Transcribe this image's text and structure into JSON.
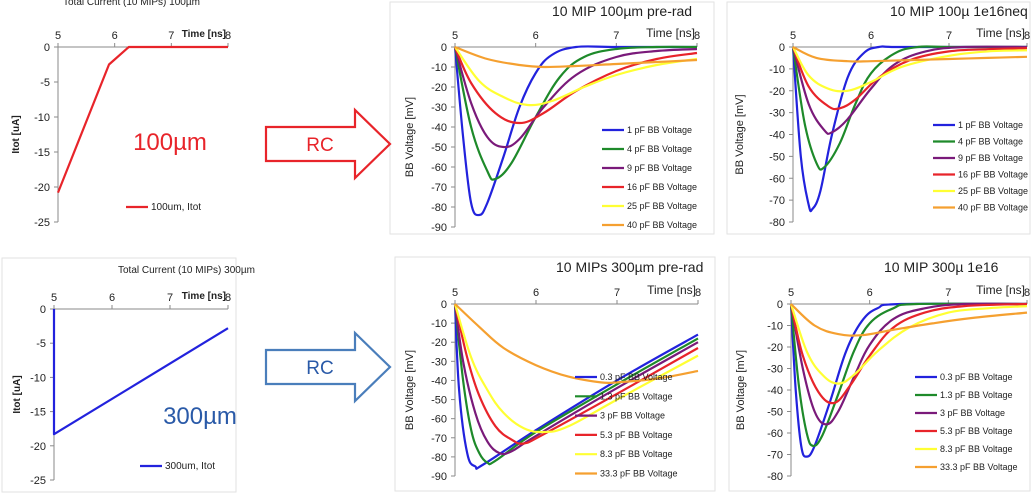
{
  "colors": {
    "red": "#e8242a",
    "blue": "#2222dd",
    "green": "#1e8a2a",
    "purple": "#7a1a7a",
    "yellow": "#ffff33",
    "orange": "#f5a030",
    "steel": "#4a7ebb",
    "axis": "#888888",
    "grid": "#d9d9d9"
  },
  "labels": {
    "thickness_100": "100µm",
    "thickness_300": "300µm",
    "arrow_top": "RC",
    "arrow_bottom": "RC"
  },
  "chart_data": [
    {
      "id": "c1",
      "type": "line",
      "title": "Total Current (10 MIPs) 100µm",
      "xlabel": "Time [ns]",
      "ylabel": "Itot [uA]",
      "xlim": [
        5,
        8
      ],
      "ylim": [
        -25,
        0
      ],
      "xticks": [
        "5",
        "6",
        "7",
        "8"
      ],
      "yticks": [
        "0",
        "-5",
        "-10",
        "-15",
        "-20",
        "-25"
      ],
      "grid": false,
      "legend": "bottom-right",
      "series": [
        {
          "name": "100um,  Itot",
          "color": "#e8242a",
          "x": [
            5.0,
            5.9,
            6.25,
            8.0
          ],
          "y": [
            -20.8,
            -2.5,
            0,
            0
          ]
        }
      ]
    },
    {
      "id": "c2",
      "type": "line",
      "title": "10 MIP 100µm pre-rad",
      "xlabel": "Time [ns]",
      "ylabel": "BB Voltage [mV]",
      "xlim": [
        5,
        8
      ],
      "ylim": [
        -90,
        0
      ],
      "xticks": [
        "5",
        "6",
        "7",
        "8"
      ],
      "yticks": [
        "0",
        "-10",
        "-20",
        "-30",
        "-40",
        "-50",
        "-60",
        "-70",
        "-80",
        "-90"
      ],
      "grid": false,
      "legend": "right",
      "series": [
        {
          "name": "1 pF BB Voltage",
          "color": "#2222dd",
          "x": [
            5.0,
            5.1,
            5.2,
            5.3,
            5.4,
            5.6,
            5.8,
            6.0,
            6.2,
            6.5,
            7.0,
            8.0
          ],
          "y": [
            0,
            -45,
            -78,
            -84,
            -78,
            -55,
            -30,
            -13,
            -4,
            0,
            0,
            0
          ]
        },
        {
          "name": "4 pF BB Voltage",
          "color": "#1e8a2a",
          "x": [
            5.0,
            5.2,
            5.4,
            5.5,
            5.7,
            6.0,
            6.3,
            6.6,
            7.0,
            7.5,
            8.0
          ],
          "y": [
            0,
            -40,
            -62,
            -66,
            -58,
            -35,
            -15,
            -5,
            -1,
            0,
            0
          ]
        },
        {
          "name": "9 pF BB Voltage",
          "color": "#7a1a7a",
          "x": [
            5.0,
            5.2,
            5.4,
            5.6,
            5.8,
            6.1,
            6.5,
            7.0,
            7.5,
            8.0
          ],
          "y": [
            0,
            -28,
            -45,
            -50,
            -46,
            -30,
            -14,
            -5,
            -2,
            -1
          ]
        },
        {
          "name": "16 pF BB Voltage",
          "color": "#e8242a",
          "x": [
            5.0,
            5.2,
            5.5,
            5.8,
            6.1,
            6.5,
            7.0,
            7.5,
            8.0
          ],
          "y": [
            0,
            -18,
            -33,
            -38,
            -33,
            -22,
            -12,
            -6,
            -3
          ]
        },
        {
          "name": "25 pF BB Voltage",
          "color": "#ffff33",
          "x": [
            5.0,
            5.3,
            5.6,
            5.9,
            6.2,
            6.6,
            7.0,
            7.5,
            8.0
          ],
          "y": [
            0,
            -17,
            -25,
            -29,
            -27,
            -20,
            -14,
            -9,
            -6
          ]
        },
        {
          "name": "40 pF BB Voltage",
          "color": "#f5a030",
          "x": [
            5.0,
            5.4,
            5.8,
            6.1,
            6.5,
            7.0,
            7.5,
            8.0
          ],
          "y": [
            0,
            -6,
            -9,
            -10,
            -9.5,
            -8.5,
            -7.5,
            -6.5
          ]
        }
      ]
    },
    {
      "id": "c3",
      "type": "line",
      "title": "10 MIP 100µ 1e16neq",
      "xlabel": "Time [ns]",
      "ylabel": "BB Voltage [mV]",
      "xlim": [
        5,
        8
      ],
      "ylim": [
        -80,
        0
      ],
      "xticks": [
        "5",
        "6",
        "7",
        "8"
      ],
      "yticks": [
        "0",
        "-10",
        "-20",
        "-30",
        "-40",
        "-50",
        "-60",
        "-70",
        "-80"
      ],
      "grid": false,
      "legend": "right",
      "series": [
        {
          "name": "1 pF BB Voltage",
          "color": "#2222dd",
          "x": [
            5.0,
            5.1,
            5.2,
            5.25,
            5.35,
            5.5,
            5.7,
            5.9,
            6.1,
            6.4,
            8.0
          ],
          "y": [
            0,
            -50,
            -72,
            -74,
            -66,
            -40,
            -14,
            -3,
            0,
            0,
            0
          ]
        },
        {
          "name": "4 pF BB Voltage",
          "color": "#1e8a2a",
          "x": [
            5.0,
            5.15,
            5.3,
            5.4,
            5.6,
            5.8,
            6.0,
            6.3,
            6.6,
            7.0,
            8.0
          ],
          "y": [
            0,
            -35,
            -53,
            -55,
            -44,
            -26,
            -12,
            -3,
            0,
            0,
            0
          ]
        },
        {
          "name": "9 pF BB Voltage",
          "color": "#7a1a7a",
          "x": [
            5.0,
            5.2,
            5.4,
            5.5,
            5.7,
            6.0,
            6.3,
            6.7,
            7.2,
            8.0
          ],
          "y": [
            0,
            -26,
            -38,
            -39,
            -33,
            -19,
            -8,
            -2,
            0,
            0
          ]
        },
        {
          "name": "16 pF BB Voltage",
          "color": "#e8242a",
          "x": [
            5.0,
            5.2,
            5.45,
            5.6,
            5.8,
            6.1,
            6.5,
            7.0,
            7.5,
            8.0
          ],
          "y": [
            0,
            -18,
            -27,
            -28,
            -24,
            -14,
            -6,
            -2,
            -1,
            -0.5
          ]
        },
        {
          "name": "25 pF BB Voltage",
          "color": "#ffff33",
          "x": [
            5.0,
            5.2,
            5.45,
            5.7,
            6.0,
            6.4,
            7.0,
            7.5,
            8.0
          ],
          "y": [
            0,
            -13,
            -19,
            -20,
            -16,
            -9,
            -4,
            -2,
            -1.5
          ]
        },
        {
          "name": "40 pF BB Voltage",
          "color": "#f5a030",
          "x": [
            5.0,
            5.3,
            5.7,
            6.0,
            6.5,
            7.0,
            7.5,
            8.0
          ],
          "y": [
            0,
            -5,
            -6.5,
            -6.5,
            -6,
            -5.5,
            -5,
            -4.5
          ]
        }
      ]
    },
    {
      "id": "c4",
      "type": "line",
      "title": "Total Current (10 MIPs) 300µm",
      "xlabel": "Time [ns]",
      "ylabel": "Itot [uA]",
      "xlim": [
        5,
        8
      ],
      "ylim": [
        -25,
        0
      ],
      "xticks": [
        "5",
        "6",
        "7",
        "8"
      ],
      "yticks": [
        "0",
        "-5",
        "-10",
        "-15",
        "-20",
        "-25"
      ],
      "grid": false,
      "legend": "bottom-right",
      "series": [
        {
          "name": "300um,  Itot",
          "color": "#2222dd",
          "x": [
            5.0,
            5.0,
            8.0
          ],
          "y": [
            0,
            -18.3,
            -2.8
          ]
        }
      ]
    },
    {
      "id": "c5",
      "type": "line",
      "title": "10 MIPs 300µm pre-rad",
      "xlabel": "Time [ns]",
      "ylabel": "BB Voltage [mV]",
      "xlim": [
        5,
        8
      ],
      "ylim": [
        -90,
        0
      ],
      "xticks": [
        "5",
        "6",
        "7",
        "8"
      ],
      "yticks": [
        "0",
        "-10",
        "-20",
        "-30",
        "-40",
        "-50",
        "-60",
        "-70",
        "-80",
        "-90"
      ],
      "grid": false,
      "legend": "right",
      "series": [
        {
          "name": "0.3 pF BB Voltage",
          "color": "#2222dd",
          "x": [
            5.0,
            5.05,
            5.15,
            5.25,
            5.35,
            6.0,
            7.0,
            8.0
          ],
          "y": [
            0,
            -45,
            -78,
            -85,
            -84,
            -66,
            -40,
            -16
          ]
        },
        {
          "name": "1.3 pF BB Voltage",
          "color": "#1e8a2a",
          "x": [
            5.0,
            5.1,
            5.2,
            5.3,
            5.4,
            5.5,
            6.0,
            7.0,
            8.0
          ],
          "y": [
            0,
            -40,
            -66,
            -78,
            -83,
            -82,
            -67,
            -42,
            -18
          ]
        },
        {
          "name": "3 pF BB Voltage",
          "color": "#7a1a7a",
          "x": [
            5.0,
            5.1,
            5.25,
            5.4,
            5.55,
            5.7,
            6.0,
            7.0,
            8.0
          ],
          "y": [
            0,
            -30,
            -57,
            -72,
            -78,
            -77,
            -69,
            -44,
            -20
          ]
        },
        {
          "name": "5.3 pF BB Voltage",
          "color": "#e8242a",
          "x": [
            5.0,
            5.15,
            5.3,
            5.5,
            5.7,
            5.85,
            6.1,
            7.0,
            8.0
          ],
          "y": [
            0,
            -28,
            -48,
            -64,
            -71,
            -73,
            -68,
            -47,
            -23
          ]
        },
        {
          "name": "8.3 pF BB Voltage",
          "color": "#ffff33",
          "x": [
            5.0,
            5.2,
            5.4,
            5.6,
            5.85,
            6.1,
            6.4,
            7.0,
            8.0
          ],
          "y": [
            0,
            -28,
            -45,
            -57,
            -65,
            -67,
            -64,
            -50,
            -27
          ]
        },
        {
          "name": "33.3 pF BB Voltage",
          "color": "#f5a030",
          "x": [
            5.0,
            5.3,
            5.6,
            6.0,
            6.4,
            6.8,
            7.0,
            7.5,
            8.0
          ],
          "y": [
            0,
            -12,
            -23,
            -32,
            -38,
            -41,
            -41,
            -39,
            -35
          ]
        }
      ]
    },
    {
      "id": "c6",
      "type": "line",
      "title": "10 MIP 300µ 1e16",
      "xlabel": "Time [ns]",
      "ylabel": "BB Voltage [mV]",
      "xlim": [
        5,
        8
      ],
      "ylim": [
        -80,
        0
      ],
      "xticks": [
        "5",
        "6",
        "7",
        "8"
      ],
      "yticks": [
        "0",
        "-10",
        "-20",
        "-30",
        "-40",
        "-50",
        "-60",
        "-70",
        "-80"
      ],
      "grid": false,
      "legend": "right",
      "series": [
        {
          "name": "0.3 pF BB Voltage",
          "color": "#2222dd",
          "x": [
            5.0,
            5.06,
            5.13,
            5.2,
            5.3,
            5.5,
            5.7,
            5.9,
            6.1,
            6.4,
            8.0
          ],
          "y": [
            0,
            -40,
            -66,
            -71,
            -66,
            -45,
            -22,
            -8,
            -2,
            0,
            0
          ]
        },
        {
          "name": "1.3 pF BB Voltage",
          "color": "#1e8a2a",
          "x": [
            5.0,
            5.1,
            5.2,
            5.28,
            5.4,
            5.6,
            5.8,
            6.0,
            6.3,
            6.6,
            8.0
          ],
          "y": [
            0,
            -38,
            -60,
            -66,
            -61,
            -42,
            -22,
            -9,
            -2,
            0,
            0
          ]
        },
        {
          "name": "3 pF BB Voltage",
          "color": "#7a1a7a",
          "x": [
            5.0,
            5.15,
            5.3,
            5.45,
            5.6,
            5.8,
            6.0,
            6.3,
            6.7,
            7.2,
            8.0
          ],
          "y": [
            0,
            -30,
            -50,
            -56,
            -50,
            -34,
            -19,
            -7,
            -2,
            0,
            0
          ]
        },
        {
          "name": "5.3 pF BB Voltage",
          "color": "#e8242a",
          "x": [
            5.0,
            5.15,
            5.35,
            5.55,
            5.75,
            6.0,
            6.3,
            6.7,
            7.2,
            8.0
          ],
          "y": [
            0,
            -24,
            -41,
            -46,
            -38,
            -24,
            -11,
            -4,
            -1,
            0
          ]
        },
        {
          "name": "8.3 pF BB Voltage",
          "color": "#ffff33",
          "x": [
            5.0,
            5.2,
            5.4,
            5.6,
            5.8,
            6.1,
            6.5,
            7.0,
            7.5,
            8.0
          ],
          "y": [
            0,
            -22,
            -33,
            -37,
            -33,
            -22,
            -11,
            -4,
            -2,
            -1
          ]
        },
        {
          "name": "33.3 pF BB Voltage",
          "color": "#f5a030",
          "x": [
            5.0,
            5.3,
            5.6,
            5.9,
            6.3,
            6.8,
            7.3,
            8.0
          ],
          "y": [
            0,
            -10,
            -14,
            -14.5,
            -12,
            -9,
            -6.5,
            -4
          ]
        }
      ]
    }
  ]
}
